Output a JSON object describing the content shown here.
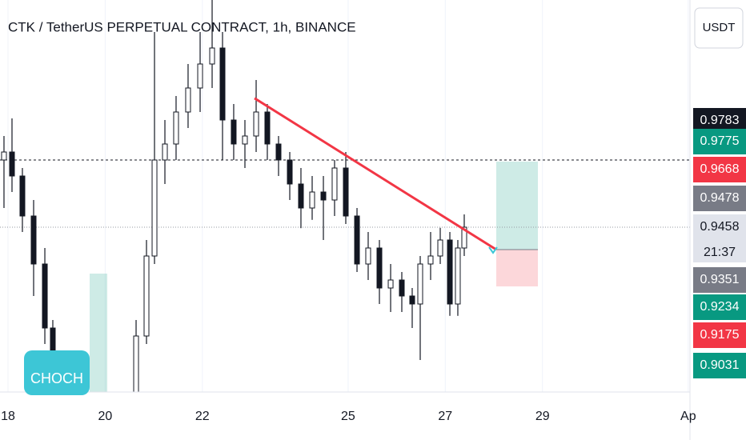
{
  "header": {
    "title": "CTK / TetherUS PERPETUAL CONTRACT, 1h, BINANCE",
    "currency": "USDT"
  },
  "chart_data": {
    "type": "candlestick",
    "xlim": [
      17.835,
      32.036
    ],
    "ylim": [
      0.8943,
      1.0168
    ],
    "xticks": [
      18,
      20,
      22,
      25,
      27,
      29,
      {
        "value": 32,
        "label": "Ap"
      }
    ],
    "grid": true,
    "up_color": "#ffffff",
    "down_color": "#131722",
    "x": [
      17.917,
      18.082,
      18.296,
      18.527,
      18.758,
      18.922,
      20.636,
      20.85,
      21.015,
      21.229,
      21.459,
      21.706,
      21.954,
      22.201,
      22.415,
      22.645,
      22.876,
      23.107,
      23.337,
      23.568,
      23.799,
      24.029,
      24.26,
      24.491,
      24.721,
      24.952,
      25.183,
      25.413,
      25.644,
      25.875,
      26.105,
      26.319,
      26.484,
      26.698,
      26.896,
      27.094,
      27.258,
      27.39
    ],
    "open": [
      0.9668,
      0.9693,
      0.9618,
      0.9493,
      0.9343,
      0.9143,
      0.8943,
      0.9118,
      0.9368,
      0.9668,
      0.9718,
      0.9818,
      0.9893,
      0.9968,
      1.0018,
      0.9793,
      0.9718,
      0.9743,
      0.9818,
      0.9718,
      0.9668,
      0.9593,
      0.9518,
      0.9568,
      0.9543,
      0.9643,
      0.9493,
      0.9343,
      0.9393,
      0.9268,
      0.9293,
      0.9243,
      0.9218,
      0.9343,
      0.9368,
      0.9418,
      0.9218,
      0.9393
    ],
    "high": [
      0.9743,
      0.9798,
      0.9643,
      0.9543,
      0.9393,
      0.9168,
      0.9168,
      0.9418,
      1.0068,
      0.9793,
      0.9868,
      0.9968,
      1.0068,
      1.0168,
      1.0068,
      0.9843,
      0.9793,
      0.9918,
      0.9843,
      0.9743,
      0.9693,
      0.9643,
      0.9618,
      0.9618,
      0.9668,
      0.9693,
      0.9518,
      0.9443,
      0.9418,
      0.9343,
      0.9318,
      0.9268,
      0.9368,
      0.9443,
      0.9456,
      0.9443,
      0.9418,
      0.9498
    ],
    "low": [
      0.9518,
      0.9568,
      0.9443,
      0.9243,
      0.9093,
      0.8943,
      0.8943,
      0.9093,
      0.9343,
      0.9593,
      0.9668,
      0.9768,
      0.9818,
      0.9893,
      0.9668,
      0.9668,
      0.9643,
      0.9693,
      0.9668,
      0.9618,
      0.9543,
      0.9455,
      0.9481,
      0.9418,
      0.9493,
      0.9468,
      0.9318,
      0.9293,
      0.9218,
      0.9193,
      0.9193,
      0.9143,
      0.9043,
      0.9293,
      0.9343,
      0.9181,
      0.9181,
      0.9368
    ],
    "close": [
      0.9693,
      0.9618,
      0.9493,
      0.9343,
      0.9143,
      0.8943,
      0.9118,
      0.9368,
      0.9668,
      0.9718,
      0.9818,
      0.9893,
      0.9968,
      1.0018,
      0.9793,
      0.9718,
      0.9743,
      0.9818,
      0.9718,
      0.9668,
      0.9593,
      0.9518,
      0.9568,
      0.9543,
      0.9643,
      0.9493,
      0.9343,
      0.9393,
      0.9268,
      0.9293,
      0.9243,
      0.9218,
      0.9343,
      0.9368,
      0.9418,
      0.9218,
      0.9393,
      0.9458
    ],
    "trendline": {
      "x": [
        23.074,
        28.049
      ],
      "y": [
        0.9861,
        0.9388
      ],
      "color": "#f23645"
    },
    "hlines": [
      {
        "y": 0.9668,
        "style": "dashed"
      },
      {
        "y": 0.9458,
        "style": "dotted"
      }
    ],
    "position": {
      "x": [
        28.049,
        28.906
      ],
      "entry": 0.9388,
      "target": 0.9663,
      "stop": 0.9273
    },
    "zone": {
      "x": [
        19.68,
        20.043
      ],
      "y": [
        0.8943,
        0.9313
      ]
    },
    "annotation": "CHOCH",
    "price_labels": [
      0.9783,
      0.9775,
      0.9668,
      0.9478,
      0.9458,
      0.9351,
      0.9234,
      0.9175,
      0.9031
    ],
    "price_label_colors": [
      "#131722",
      "#089981",
      "#f23645",
      "#787b86",
      "#e0e3eb",
      "#787b86",
      "#089981",
      "#f23645",
      "#089981"
    ],
    "countdown": "21:37"
  }
}
